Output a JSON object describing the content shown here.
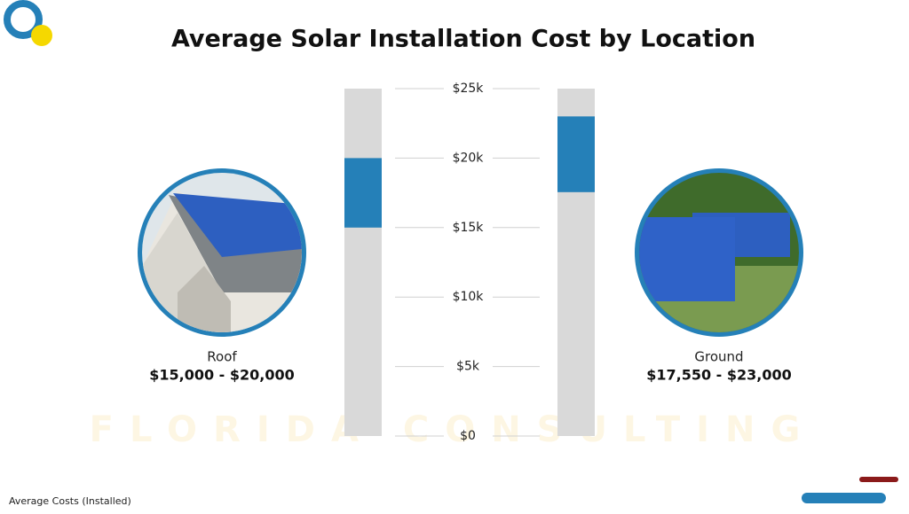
{
  "chart_data": {
    "type": "range",
    "title": "Average Solar Installation Cost by Location",
    "categories": [
      "Roof",
      "Ground"
    ],
    "low": [
      15000,
      17550
    ],
    "high": [
      20000,
      23000
    ],
    "value_labels": [
      "$15,000 - $20,000",
      "$17,550 - $23,000"
    ],
    "color": "#2580b8",
    "track_color": "#d9d9d9",
    "ylim": [
      0,
      25000
    ],
    "yticks": [
      {
        "value": 0,
        "label": "$0"
      },
      {
        "value": 5000,
        "label": "$5k"
      },
      {
        "value": 10000,
        "label": "$10k"
      },
      {
        "value": 15000,
        "label": "$15k"
      },
      {
        "value": 20000,
        "label": "$20k"
      },
      {
        "value": 25000,
        "label": "$25k"
      }
    ],
    "grid": true,
    "watermark": "FLORIDA CONSULTING",
    "footnote": "Average Costs (Installed)"
  }
}
